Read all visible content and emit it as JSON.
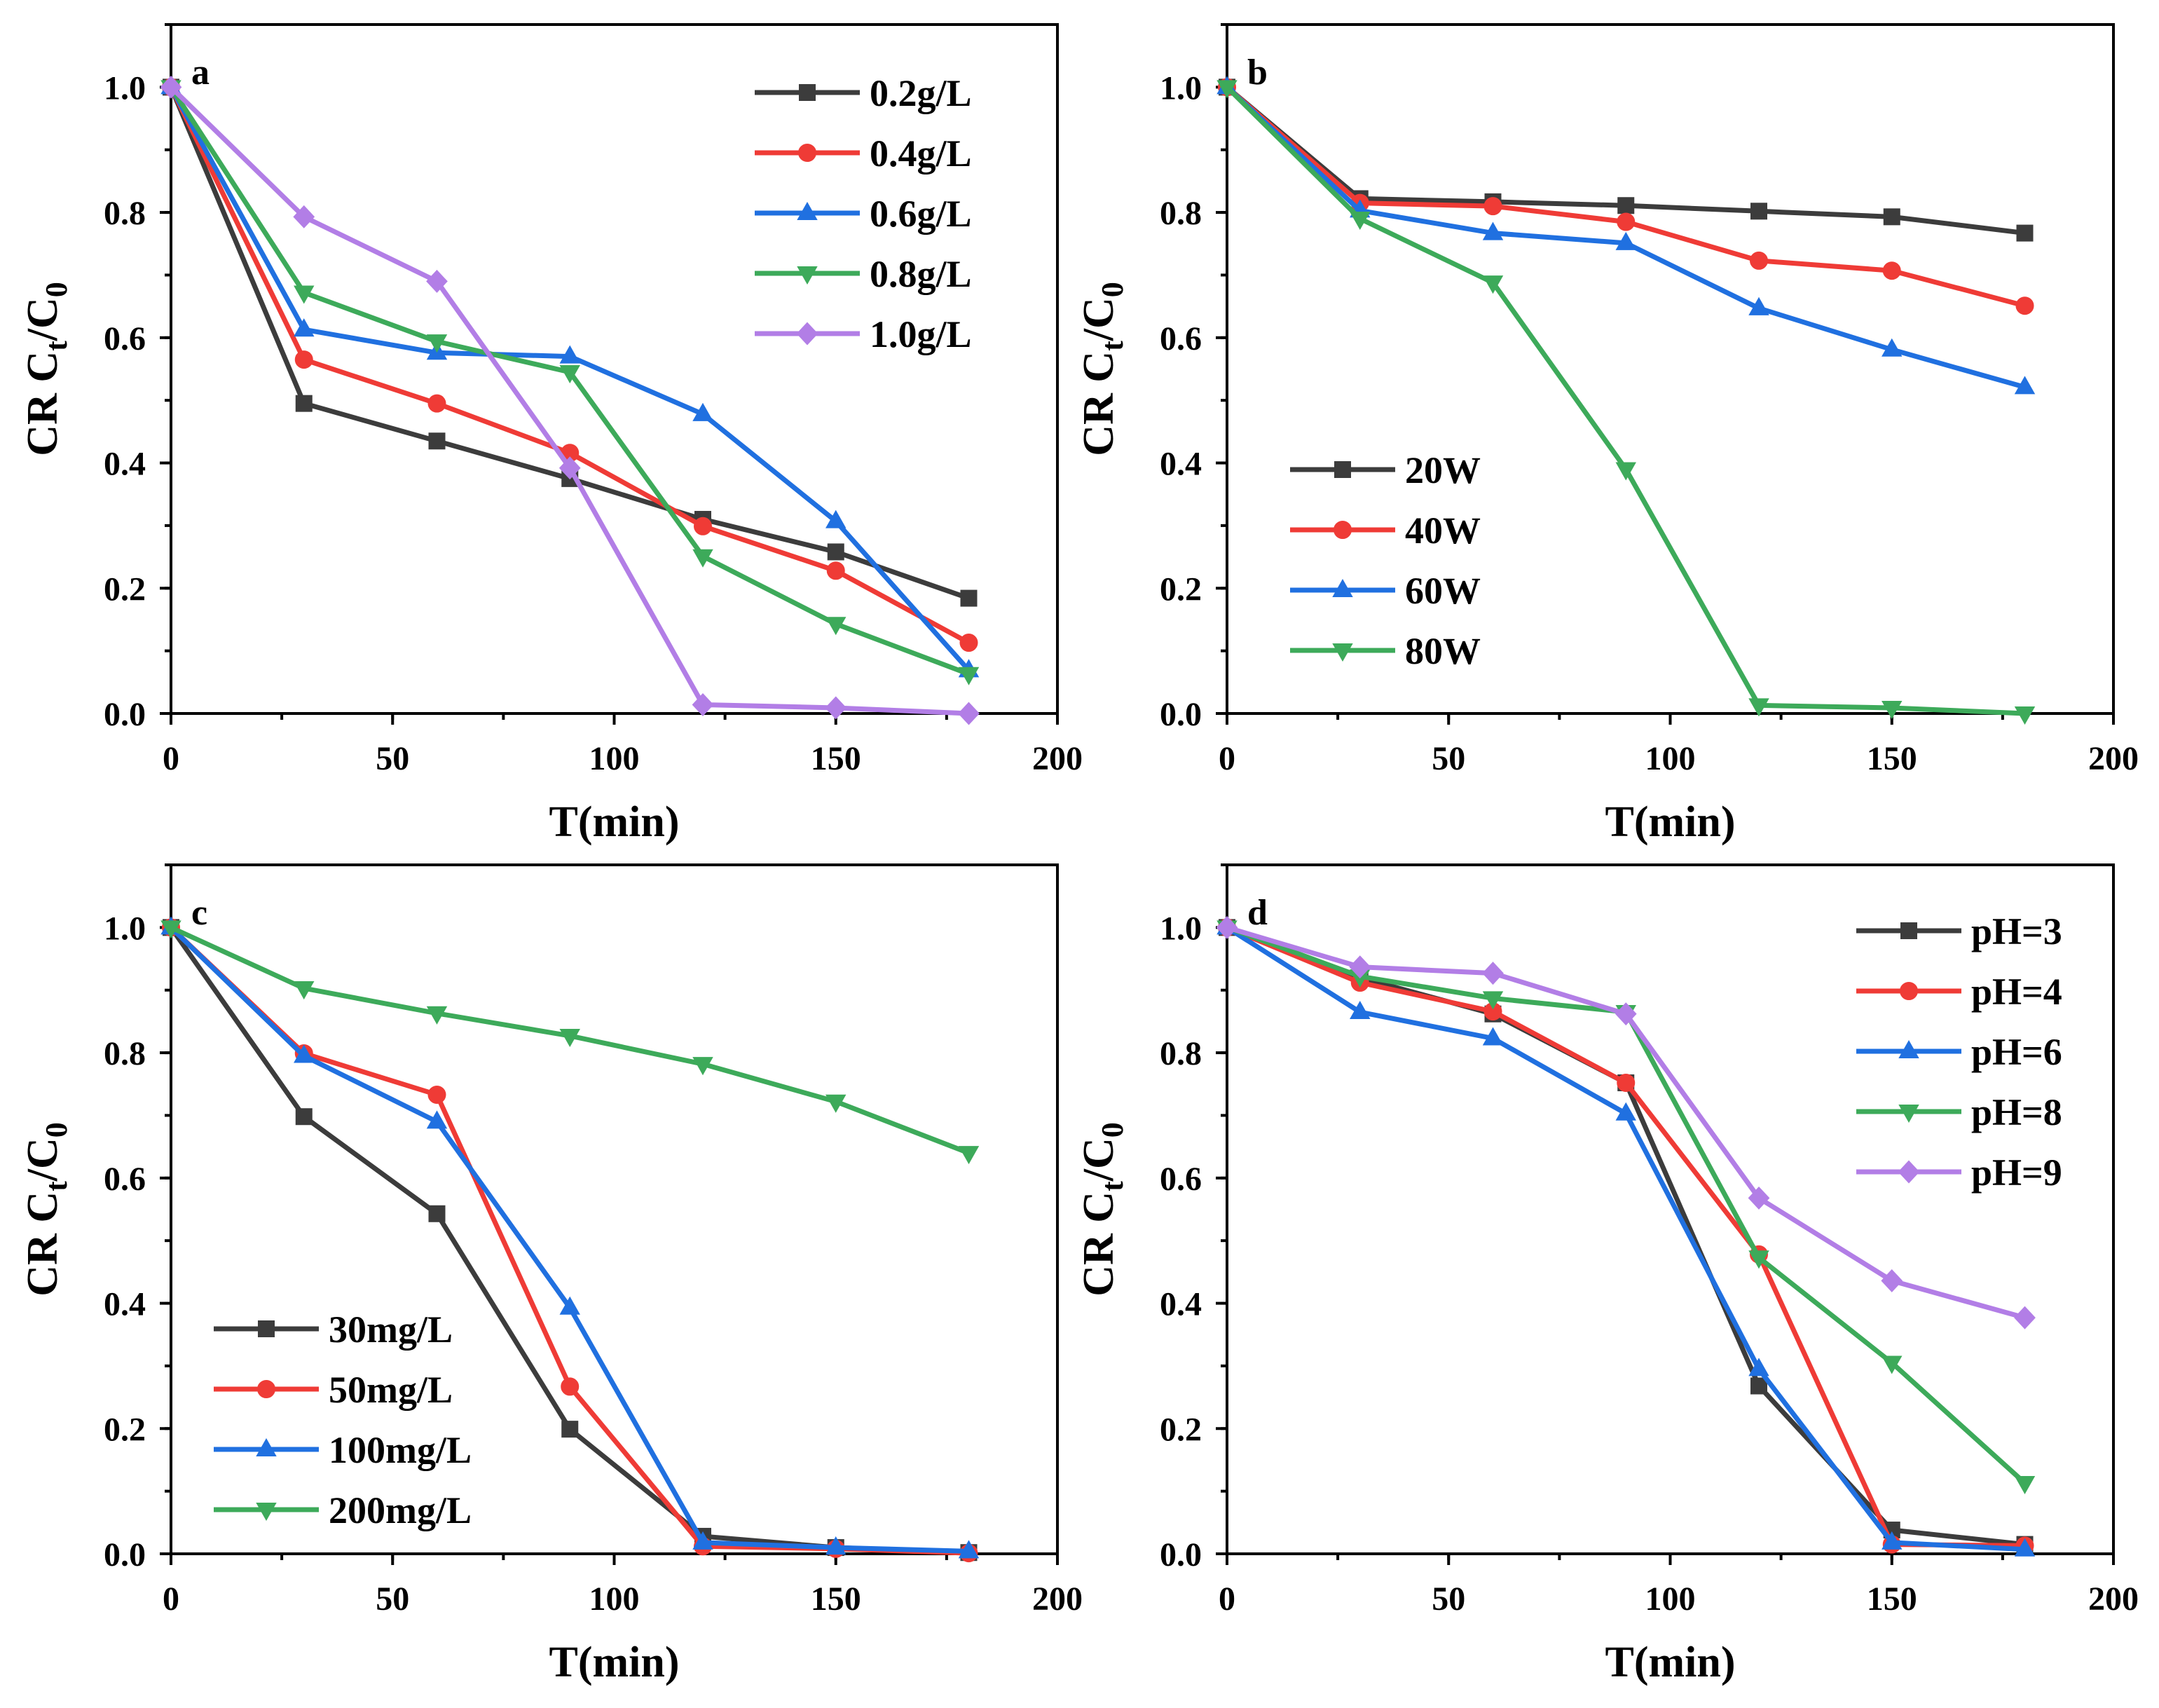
{
  "chart_data": [
    {
      "type": "line",
      "panel_label": "a",
      "title": "",
      "xlabel": "T(min)",
      "ylabel": {
        "prefix": "CR C",
        "sub1": "t",
        "middle": "/C",
        "sub2": "0"
      },
      "xlim": [
        0,
        200
      ],
      "ylim": [
        0,
        1.1
      ],
      "xtick_labels": [
        "0",
        "50",
        "100",
        "150",
        "200"
      ],
      "ytick_labels": [
        "0.0",
        "0.2",
        "0.4",
        "0.6",
        "0.8",
        "1.0"
      ],
      "x_minor_step": 25,
      "y_minor_step": 0.1,
      "grid": false,
      "legend_position": "top-right",
      "x": [
        0,
        30,
        60,
        90,
        120,
        150,
        180
      ],
      "series": [
        {
          "name": "0.2g/L",
          "color": "#3c3c3c",
          "marker": "square",
          "values": [
            1.0,
            0.495,
            0.435,
            0.375,
            0.31,
            0.258,
            0.184
          ]
        },
        {
          "name": "0.4g/L",
          "color": "#ef3b36",
          "marker": "circle",
          "values": [
            1.0,
            0.565,
            0.495,
            0.416,
            0.299,
            0.228,
            0.113
          ]
        },
        {
          "name": "0.6g/L",
          "color": "#2070e0",
          "marker": "triangle-up",
          "values": [
            1.0,
            0.613,
            0.576,
            0.57,
            0.478,
            0.307,
            0.069
          ]
        },
        {
          "name": "0.8g/L",
          "color": "#3daa5a",
          "marker": "triangle-down",
          "values": [
            1.0,
            0.672,
            0.594,
            0.545,
            0.251,
            0.143,
            0.063
          ]
        },
        {
          "name": "1.0g/L",
          "color": "#b27ee6",
          "marker": "diamond",
          "values": [
            1.0,
            0.793,
            0.69,
            0.392,
            0.014,
            0.009,
            0.0
          ]
        }
      ]
    },
    {
      "type": "line",
      "panel_label": "b",
      "title": "",
      "xlabel": "T(min)",
      "ylabel": {
        "prefix": "CR C",
        "sub1": "t",
        "middle": "/C",
        "sub2": "0"
      },
      "xlim": [
        0,
        200
      ],
      "ylim": [
        0,
        1.1
      ],
      "xtick_labels": [
        "0",
        "50",
        "100",
        "150",
        "200"
      ],
      "ytick_labels": [
        "0.0",
        "0.2",
        "0.4",
        "0.6",
        "0.8",
        "1.0"
      ],
      "x_minor_step": 25,
      "y_minor_step": 0.1,
      "grid": false,
      "legend_position": "center-left",
      "x": [
        0,
        30,
        60,
        90,
        120,
        150,
        180
      ],
      "series": [
        {
          "name": "20W",
          "color": "#3c3c3c",
          "marker": "square",
          "values": [
            1.0,
            0.822,
            0.817,
            0.811,
            0.802,
            0.793,
            0.767
          ]
        },
        {
          "name": "40W",
          "color": "#ef3b36",
          "marker": "circle",
          "values": [
            1.0,
            0.815,
            0.81,
            0.785,
            0.723,
            0.707,
            0.651
          ]
        },
        {
          "name": "60W",
          "color": "#2070e0",
          "marker": "triangle-up",
          "values": [
            1.0,
            0.803,
            0.767,
            0.751,
            0.647,
            0.581,
            0.521
          ]
        },
        {
          "name": "80W",
          "color": "#3daa5a",
          "marker": "triangle-down",
          "values": [
            1.0,
            0.79,
            0.688,
            0.39,
            0.013,
            0.009,
            0.0
          ]
        }
      ]
    },
    {
      "type": "line",
      "panel_label": "c",
      "title": "",
      "xlabel": "T(min)",
      "ylabel": {
        "prefix": "CR C",
        "sub1": "t",
        "middle": "/C",
        "sub2": "0"
      },
      "xlim": [
        0,
        200
      ],
      "ylim": [
        0,
        1.1
      ],
      "xtick_labels": [
        "0",
        "50",
        "100",
        "150",
        "200"
      ],
      "ytick_labels": [
        "0.0",
        "0.2",
        "0.4",
        "0.6",
        "0.8",
        "1.0"
      ],
      "x_minor_step": 25,
      "y_minor_step": 0.1,
      "grid": false,
      "legend_position": "bottom-left",
      "x": [
        0,
        30,
        60,
        90,
        120,
        150,
        180
      ],
      "series": [
        {
          "name": "30mg/L",
          "color": "#3c3c3c",
          "marker": "square",
          "values": [
            1.0,
            0.698,
            0.543,
            0.199,
            0.028,
            0.01,
            0.002
          ]
        },
        {
          "name": "50mg/L",
          "color": "#ef3b36",
          "marker": "circle",
          "values": [
            1.0,
            0.799,
            0.733,
            0.267,
            0.012,
            0.008,
            0.001
          ]
        },
        {
          "name": "100mg/L",
          "color": "#2070e0",
          "marker": "triangle-up",
          "values": [
            1.0,
            0.795,
            0.69,
            0.393,
            0.018,
            0.01,
            0.004
          ]
        },
        {
          "name": "200mg/L",
          "color": "#3daa5a",
          "marker": "triangle-down",
          "values": [
            1.0,
            0.903,
            0.863,
            0.827,
            0.782,
            0.722,
            0.64
          ]
        }
      ]
    },
    {
      "type": "line",
      "panel_label": "d",
      "title": "",
      "xlabel": "T(min)",
      "ylabel": {
        "prefix": "CR C",
        "sub1": "t",
        "middle": "/C",
        "sub2": "0"
      },
      "xlim": [
        0,
        200
      ],
      "ylim": [
        0,
        1.1
      ],
      "xtick_labels": [
        "0",
        "50",
        "100",
        "150",
        "200"
      ],
      "ytick_labels": [
        "0.0",
        "0.2",
        "0.4",
        "0.6",
        "0.8",
        "1.0"
      ],
      "x_minor_step": 25,
      "y_minor_step": 0.1,
      "grid": false,
      "legend_position": "top-right",
      "x": [
        0,
        30,
        60,
        90,
        120,
        150,
        180
      ],
      "series": [
        {
          "name": "pH=3",
          "color": "#3c3c3c",
          "marker": "square",
          "values": [
            1.0,
            0.92,
            0.862,
            0.752,
            0.268,
            0.038,
            0.015
          ]
        },
        {
          "name": "pH=4",
          "color": "#ef3b36",
          "marker": "circle",
          "values": [
            1.0,
            0.912,
            0.866,
            0.752,
            0.478,
            0.015,
            0.013
          ]
        },
        {
          "name": "pH=6",
          "color": "#2070e0",
          "marker": "triangle-up",
          "values": [
            1.0,
            0.865,
            0.823,
            0.703,
            0.295,
            0.018,
            0.007
          ]
        },
        {
          "name": "pH=8",
          "color": "#3daa5a",
          "marker": "triangle-down",
          "values": [
            1.0,
            0.922,
            0.887,
            0.865,
            0.473,
            0.305,
            0.113
          ]
        },
        {
          "name": "pH=9",
          "color": "#b27ee6",
          "marker": "diamond",
          "values": [
            1.0,
            0.937,
            0.927,
            0.862,
            0.568,
            0.436,
            0.377
          ]
        }
      ]
    }
  ]
}
